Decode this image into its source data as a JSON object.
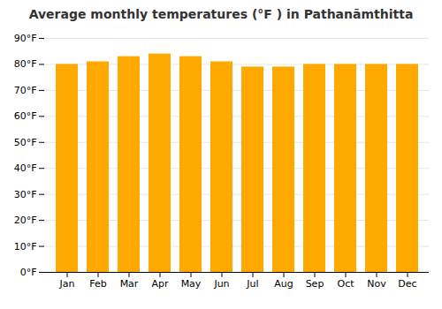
{
  "chart_data": {
    "type": "bar",
    "title": "Average monthly temperatures (°F ) in Pathanāmthitta",
    "categories": [
      "Jan",
      "Feb",
      "Mar",
      "Apr",
      "May",
      "Jun",
      "Jul",
      "Aug",
      "Sep",
      "Oct",
      "Nov",
      "Dec"
    ],
    "values": [
      80,
      81,
      83,
      84,
      83,
      81,
      79,
      79,
      80,
      80,
      80,
      80
    ],
    "color": "#FFA800",
    "ylim": [
      0,
      90
    ],
    "yticks": [
      {
        "value": 0,
        "label": "0°F"
      },
      {
        "value": 10,
        "label": "10°F"
      },
      {
        "value": 20,
        "label": "20°F"
      },
      {
        "value": 30,
        "label": "30°F"
      },
      {
        "value": 40,
        "label": "40°F"
      },
      {
        "value": 50,
        "label": "50°F"
      },
      {
        "value": 60,
        "label": "60°F"
      },
      {
        "value": 70,
        "label": "70°F"
      },
      {
        "value": 80,
        "label": "80°F"
      },
      {
        "value": 90,
        "label": "90°F"
      }
    ],
    "grid": true
  }
}
